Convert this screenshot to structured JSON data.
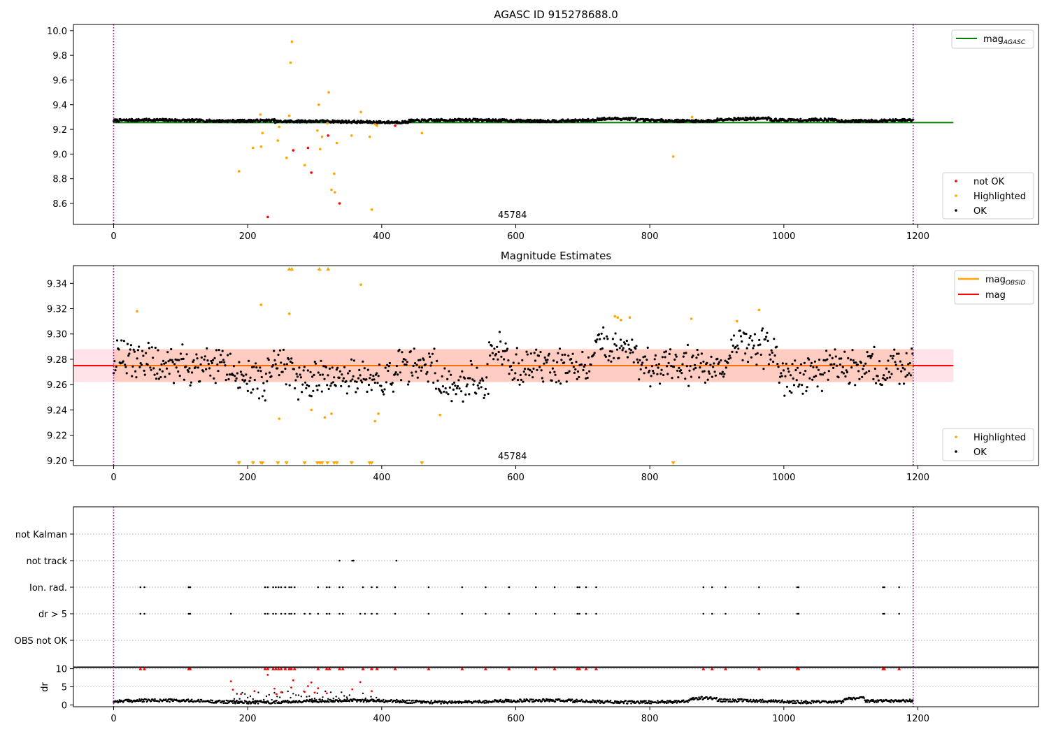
{
  "colors": {
    "ok": "#000000",
    "highlighted": "#ffa500",
    "not_ok": "#ff0000",
    "mag_agasc_line": "#008000",
    "mag_line": "#ff0000",
    "mag_obsid_line": "#ffa500",
    "obs_boundary": "#800080",
    "band_outer": "#ffc0cb",
    "band_inner": "#ffa07a"
  },
  "chart_data": [
    {
      "type": "scatter",
      "title": "AGASC ID 915278688.0",
      "xlim": [
        -60,
        1380
      ],
      "ylim": [
        8.43,
        10.05
      ],
      "xticks": [
        0,
        200,
        400,
        600,
        800,
        1000,
        1200
      ],
      "yticks": [
        8.6,
        8.8,
        9.0,
        9.2,
        9.4,
        9.6,
        9.8,
        10.0
      ],
      "ytick_labels": [
        "8.6",
        "8.8",
        "9.0",
        "9.2",
        "9.4",
        "9.6",
        "9.8",
        "10.0"
      ],
      "vlines": [
        0,
        1193
      ],
      "obsid_label": {
        "x": 595,
        "text": "45784"
      },
      "mag_agasc": {
        "value": 9.255,
        "x_range": [
          0,
          1253
        ]
      },
      "ok_band": {
        "start": 0,
        "end": 1193,
        "base": 9.272,
        "spread": 0.01
      },
      "legend_lines": [
        {
          "label": "mag",
          "sub": "AGASC",
          "position": "top-right"
        }
      ],
      "legend_points": [
        {
          "label": "not OK",
          "color_key": "not_ok"
        },
        {
          "label": "Highlighted",
          "color_key": "highlighted"
        },
        {
          "label": "OK",
          "color_key": "ok"
        }
      ],
      "highlighted": [
        [
          187,
          8.86
        ],
        [
          208,
          9.05
        ],
        [
          219,
          9.32
        ],
        [
          220,
          9.06
        ],
        [
          222,
          9.17
        ],
        [
          245,
          9.11
        ],
        [
          247,
          9.22
        ],
        [
          258,
          8.97
        ],
        [
          262,
          9.31
        ],
        [
          264,
          9.74
        ],
        [
          266,
          9.91
        ],
        [
          285,
          8.91
        ],
        [
          304,
          9.19
        ],
        [
          306,
          9.4
        ],
        [
          308,
          9.04
        ],
        [
          311,
          9.14
        ],
        [
          319,
          9.25
        ],
        [
          321,
          9.5
        ],
        [
          325,
          8.71
        ],
        [
          329,
          8.84
        ],
        [
          330,
          8.69
        ],
        [
          333,
          9.09
        ],
        [
          355,
          9.15
        ],
        [
          369,
          9.34
        ],
        [
          382,
          9.14
        ],
        [
          385,
          8.55
        ],
        [
          390,
          9.24
        ],
        [
          393,
          9.23
        ],
        [
          460,
          9.17
        ],
        [
          835,
          8.98
        ],
        [
          863,
          9.3
        ]
      ],
      "not_ok": [
        [
          230,
          8.49
        ],
        [
          268,
          9.03
        ],
        [
          290,
          9.05
        ],
        [
          295,
          8.85
        ],
        [
          320,
          9.15
        ],
        [
          337,
          8.6
        ],
        [
          420,
          9.23
        ]
      ]
    },
    {
      "type": "scatter",
      "title": "Magnitude Estimates",
      "xlim": [
        -60,
        1380
      ],
      "ylim": [
        9.196,
        9.354
      ],
      "xticks": [
        0,
        200,
        400,
        600,
        800,
        1000,
        1200
      ],
      "yticks": [
        9.2,
        9.22,
        9.24,
        9.26,
        9.28,
        9.3,
        9.32,
        9.34
      ],
      "ytick_labels": [
        "9.20",
        "9.22",
        "9.24",
        "9.26",
        "9.28",
        "9.30",
        "9.32",
        "9.34"
      ],
      "vlines": [
        0,
        1193
      ],
      "obsid_label": {
        "x": 595,
        "text": "45784"
      },
      "mag": 9.275,
      "mag_band": {
        "low": 9.262,
        "high": 9.288,
        "x_range": [
          -60,
          1253
        ]
      },
      "mag_obsid": {
        "value": 9.275,
        "low": 9.262,
        "high": 9.288,
        "x_range": [
          0,
          1193
        ]
      },
      "ok_band": {
        "start": 0,
        "end": 1193,
        "base": 9.274,
        "spread": 0.024
      },
      "legend_lines": [
        {
          "label": "mag",
          "sub": "OBSID",
          "color_key": "mag_obsid_line"
        },
        {
          "label": "mag",
          "sub": "",
          "color_key": "mag_line"
        }
      ],
      "legend_points": [
        {
          "label": "Highlighted",
          "color_key": "highlighted"
        },
        {
          "label": "OK",
          "color_key": "ok"
        }
      ],
      "highlighted": [
        [
          35,
          9.318
        ],
        [
          220,
          9.323
        ],
        [
          247,
          9.233
        ],
        [
          262,
          9.316
        ],
        [
          295,
          9.24
        ],
        [
          315,
          9.234
        ],
        [
          325,
          9.237
        ],
        [
          369,
          9.339
        ],
        [
          390,
          9.231
        ],
        [
          395,
          9.237
        ],
        [
          487,
          9.236
        ],
        [
          748,
          9.314
        ],
        [
          752,
          9.313
        ],
        [
          757,
          9.311
        ],
        [
          770,
          9.313
        ],
        [
          862,
          9.312
        ],
        [
          930,
          9.31
        ],
        [
          963,
          9.319
        ]
      ],
      "over_top_x": [
        262,
        266,
        307,
        320
      ],
      "under_bottom_x": [
        187,
        208,
        220,
        222,
        245,
        258,
        285,
        304,
        308,
        311,
        319,
        329,
        333,
        355,
        382,
        385,
        460,
        835
      ]
    },
    {
      "type": "scatter",
      "categories": [
        "not Kalman",
        "not track",
        "Ion. rad.",
        "dr > 5",
        "OBS not OK"
      ],
      "xlim": [
        -60,
        1380
      ],
      "vlines": [
        0,
        1193
      ],
      "flags": {
        "not track": [
          337,
          356,
          358,
          422
        ],
        "Ion. rad.": [
          40,
          46,
          112,
          114,
          226,
          230,
          238,
          242,
          246,
          250,
          256,
          262,
          265,
          270,
          305,
          318,
          322,
          337,
          342,
          372,
          385,
          393,
          420,
          470,
          520,
          555,
          590,
          630,
          658,
          692,
          695,
          705,
          720,
          880,
          893,
          913,
          963,
          1020,
          1022,
          1148,
          1150,
          1172
        ],
        "dr > 5": [
          40,
          46,
          112,
          114,
          175,
          226,
          230,
          238,
          242,
          250,
          256,
          262,
          265,
          270,
          285,
          293,
          305,
          318,
          322,
          337,
          342,
          368,
          375,
          385,
          393,
          420,
          470,
          520,
          555,
          590,
          630,
          658,
          692,
          695,
          705,
          720,
          880,
          893,
          913,
          963,
          1020,
          1022,
          1148,
          1150,
          1172
        ]
      }
    },
    {
      "type": "scatter",
      "ylabel": "dr",
      "xlim": [
        -60,
        1380
      ],
      "ylim": [
        -0.5,
        10.5
      ],
      "xticks": [
        0,
        200,
        400,
        600,
        800,
        1000,
        1200
      ],
      "yticks": [
        0,
        5,
        10
      ],
      "ytick_labels": [
        "0",
        "5",
        "10"
      ],
      "vlines": [
        0,
        1193
      ],
      "clipped_at_10_x": [
        40,
        46,
        112,
        114,
        226,
        230,
        238,
        242,
        246,
        250,
        256,
        262,
        265,
        270,
        305,
        318,
        322,
        337,
        342,
        372,
        385,
        393,
        420,
        470,
        520,
        555,
        590,
        630,
        658,
        692,
        695,
        705,
        720,
        880,
        893,
        913,
        963,
        1020,
        1022,
        1148,
        1150,
        1172
      ],
      "red_points": [
        [
          175,
          6.5
        ],
        [
          178,
          4.2
        ],
        [
          190,
          3.0
        ],
        [
          210,
          3.8
        ],
        [
          230,
          8.3
        ],
        [
          240,
          4.5
        ],
        [
          243,
          3.0
        ],
        [
          250,
          3.5
        ],
        [
          265,
          4.8
        ],
        [
          268,
          6.8
        ],
        [
          285,
          3.6
        ],
        [
          290,
          5.2
        ],
        [
          295,
          6.2
        ],
        [
          300,
          3.4
        ],
        [
          305,
          4.6
        ],
        [
          318,
          3.2
        ],
        [
          356,
          4.3
        ],
        [
          368,
          6.3
        ],
        [
          385,
          3.8
        ]
      ],
      "baseline": {
        "start": 0,
        "end": 1193,
        "base": 0.6
      }
    }
  ]
}
